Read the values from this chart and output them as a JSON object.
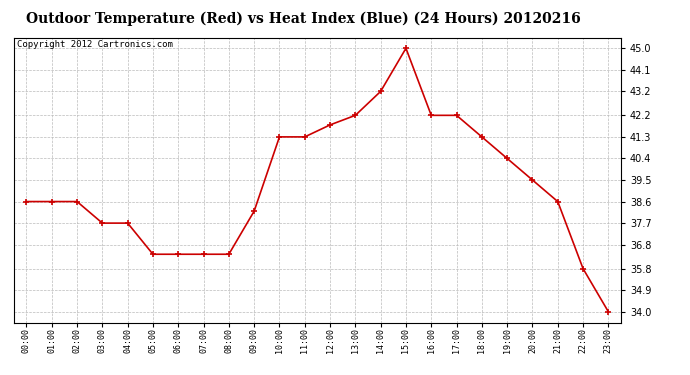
{
  "title": "Outdoor Temperature (Red) vs Heat Index (Blue) (24 Hours) 20120216",
  "copyright": "Copyright 2012 Cartronics.com",
  "x_labels": [
    "00:00",
    "01:00",
    "02:00",
    "03:00",
    "04:00",
    "05:00",
    "06:00",
    "07:00",
    "08:00",
    "09:00",
    "10:00",
    "11:00",
    "12:00",
    "13:00",
    "14:00",
    "15:00",
    "16:00",
    "17:00",
    "18:00",
    "19:00",
    "20:00",
    "21:00",
    "22:00",
    "23:00"
  ],
  "temp_red": [
    38.6,
    38.6,
    38.6,
    37.7,
    37.7,
    36.4,
    36.4,
    36.4,
    36.4,
    38.2,
    41.3,
    41.3,
    41.8,
    42.2,
    43.2,
    45.0,
    42.2,
    42.2,
    41.3,
    40.4,
    39.5,
    38.6,
    35.8,
    34.0
  ],
  "ylim_min": 33.55,
  "ylim_max": 45.45,
  "yticks": [
    34.0,
    34.9,
    35.8,
    36.8,
    37.7,
    38.6,
    39.5,
    40.4,
    41.3,
    42.2,
    43.2,
    44.1,
    45.0
  ],
  "line_color_red": "#CC0000",
  "bg_color": "#FFFFFF",
  "grid_color": "#BBBBBB",
  "title_fontsize": 10,
  "copyright_fontsize": 6.5
}
